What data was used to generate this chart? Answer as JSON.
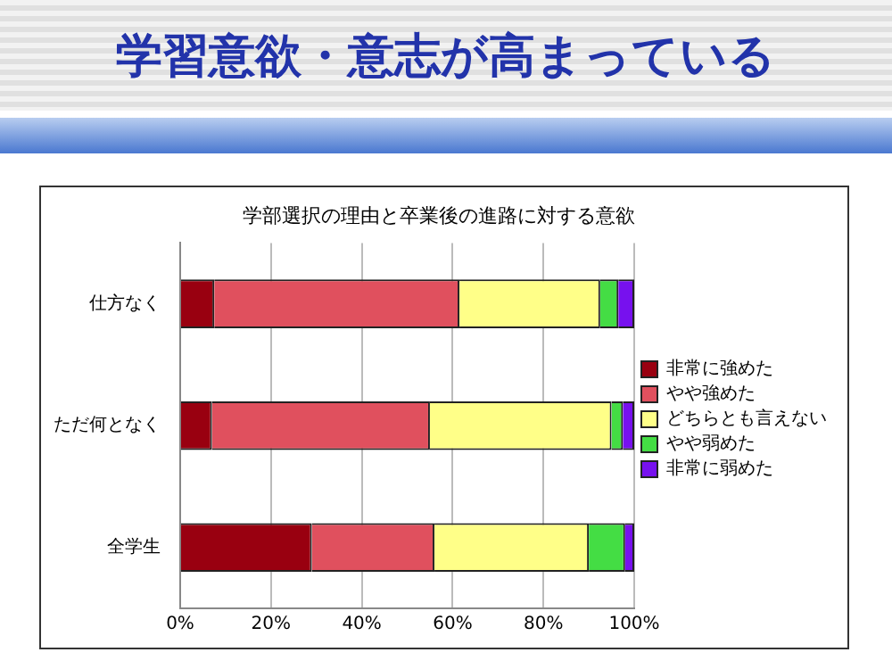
{
  "chart_data": {
    "type": "bar",
    "orientation": "horizontal",
    "stacked": true,
    "title": "学習意欲・意志が高まっている",
    "subtitle": "学部選択の理由と卒業後の進路に対する意欲",
    "categories": [
      "仕方なく",
      "ただ何となく",
      "全学生"
    ],
    "series": [
      {
        "name": "非常に強めた",
        "color": "#990010",
        "values": [
          7.5,
          7,
          29
        ]
      },
      {
        "name": "やや強めた",
        "color": "#e0505e",
        "values": [
          54,
          48,
          27
        ]
      },
      {
        "name": "どちらとも言えない",
        "color": "#ffff88",
        "values": [
          31,
          40,
          34
        ]
      },
      {
        "name": "やや弱めた",
        "color": "#44dd44",
        "values": [
          4,
          2.5,
          8
        ]
      },
      {
        "name": "非常に弱めた",
        "color": "#7711ee",
        "values": [
          3.5,
          2.5,
          2
        ]
      }
    ],
    "xlim": [
      0,
      100
    ],
    "xticks": [
      {
        "value": 0,
        "label": "0%"
      },
      {
        "value": 20,
        "label": "20%"
      },
      {
        "value": 40,
        "label": "40%"
      },
      {
        "value": 60,
        "label": "60%"
      },
      {
        "value": 80,
        "label": "80%"
      },
      {
        "value": 100,
        "label": "100%"
      }
    ],
    "grid": "x",
    "legend": "right"
  }
}
